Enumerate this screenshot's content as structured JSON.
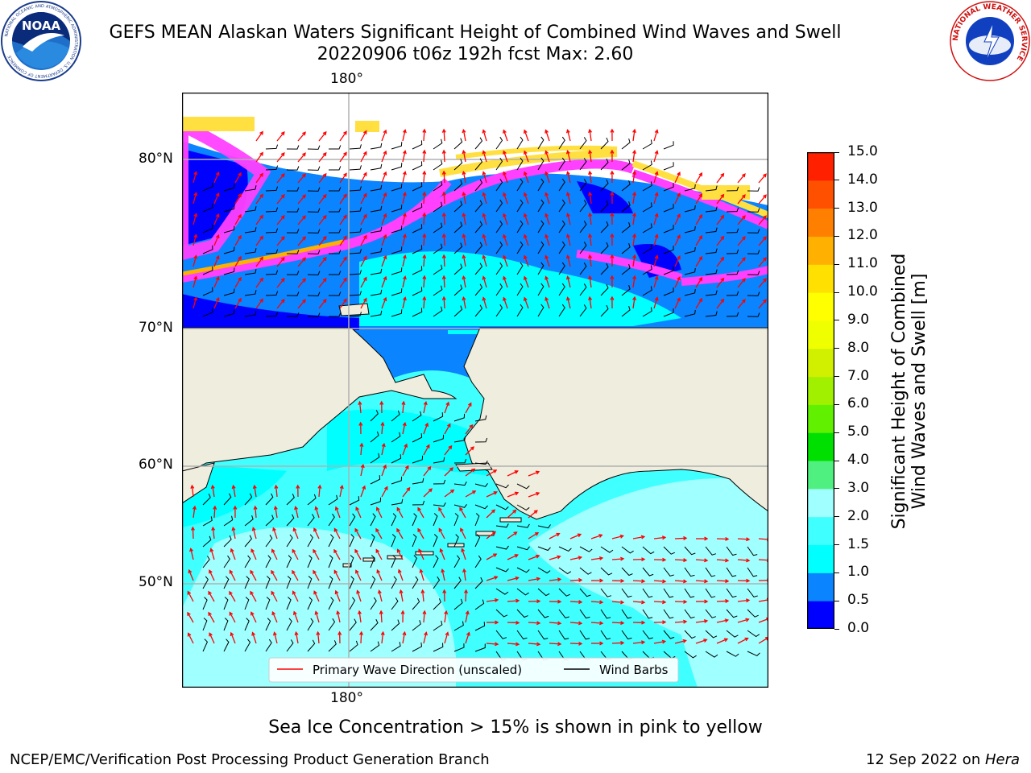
{
  "header": {
    "title_line1": "GEFS MEAN Alaskan Waters Significant Height of Combined Wind Waves and Swell",
    "title_line2": "20220906 t06z 192h fcst   Max: 2.60"
  },
  "logos": {
    "noaa_text": "NOAA",
    "noaa_ring_text": "NATIONAL OCEANIC AND ATMOSPHERIC ADMINISTRATION",
    "noaa_ring_bottom": "U.S. DEPARTMENT OF COMMERCE",
    "nws_ring_text": "NATIONAL WEATHER SERVICE"
  },
  "map": {
    "lon_top": "180°",
    "lon_bottom": "180°",
    "lat_labels": [
      "80°N",
      "70°N",
      "60°N",
      "50°N"
    ],
    "legend": {
      "wave": "Primary Wave Direction (unscaled)",
      "wind": "Wind Barbs"
    },
    "colors": {
      "land": "#efeddd",
      "deep_blue": "#0000ff",
      "mid_blue": "#0a84ff",
      "cyan": "#00ffff",
      "light_cyan": "#40ffff",
      "pale_cyan": "#a0ffff",
      "ice_pink": "#ff40ff",
      "ice_magenta": "#ff00ff",
      "ice_yellow": "#ffe040",
      "ice_orange": "#ffb000",
      "grid": "#b0b0b0",
      "arrow": "#ff0000"
    }
  },
  "colorbar": {
    "label_line1": "Significant Height of Combined",
    "label_line2": "Wind Waves and Swell [m]",
    "ticks": [
      "15.0",
      "14.0",
      "13.0",
      "12.0",
      "11.0",
      "10.0",
      "9.0",
      "8.0",
      "7.0",
      "6.0",
      "5.0",
      "4.0",
      "3.0",
      "2.0",
      "1.5",
      "1.0",
      "0.5",
      "0.0"
    ],
    "colors": [
      "#0000ff",
      "#0a84ff",
      "#00ffff",
      "#40ffff",
      "#a0ffff",
      "#50f080",
      "#00e000",
      "#60f000",
      "#a0f000",
      "#d0f000",
      "#f0ff00",
      "#ffff00",
      "#ffe000",
      "#ffb000",
      "#ff8000",
      "#ff5000",
      "#ff2000"
    ]
  },
  "note": "Sea Ice Concentration > 15% is shown in pink to yellow",
  "footer": {
    "left": "NCEP/EMC/Verification Post Processing Product Generation Branch",
    "right_date": "12 Sep 2022 on ",
    "right_host": "Hera"
  }
}
